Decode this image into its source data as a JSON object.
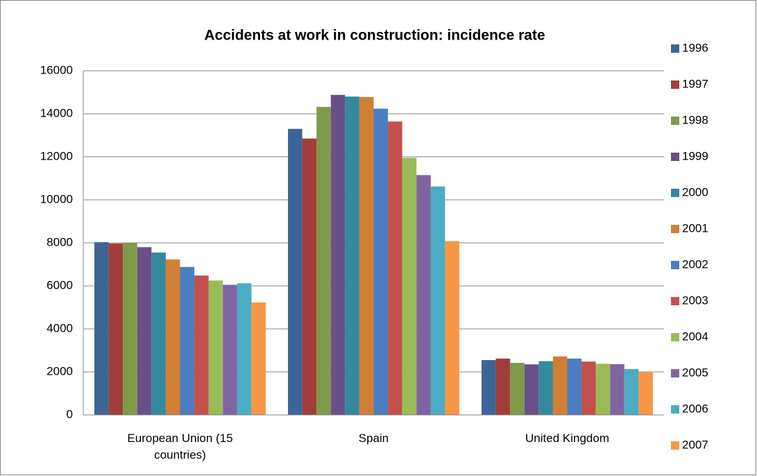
{
  "chart_data": {
    "type": "bar",
    "title": "Accidents at work in construction: incidence rate",
    "categories": [
      "European Union (15 countries)",
      "Spain",
      "United Kingdom"
    ],
    "series": [
      {
        "name": "1996",
        "color": "#3d6497",
        "values": [
          8030,
          13300,
          2550
        ]
      },
      {
        "name": "1997",
        "color": "#a13e3b",
        "values": [
          7970,
          12850,
          2620
        ]
      },
      {
        "name": "1998",
        "color": "#7f9a48",
        "values": [
          8000,
          14320,
          2420
        ]
      },
      {
        "name": "1999",
        "color": "#6a5088",
        "values": [
          7800,
          14880,
          2350
        ]
      },
      {
        "name": "2000",
        "color": "#35899d",
        "values": [
          7550,
          14800,
          2500
        ]
      },
      {
        "name": "2001",
        "color": "#d27f36",
        "values": [
          7230,
          14780,
          2720
        ]
      },
      {
        "name": "2002",
        "color": "#4a7ec1",
        "values": [
          6880,
          14240,
          2620
        ]
      },
      {
        "name": "2003",
        "color": "#c2504d",
        "values": [
          6480,
          13640,
          2480
        ]
      },
      {
        "name": "2004",
        "color": "#9bbb59",
        "values": [
          6250,
          11950,
          2380
        ]
      },
      {
        "name": "2005",
        "color": "#8064a2",
        "values": [
          6050,
          11150,
          2360
        ]
      },
      {
        "name": "2006",
        "color": "#4bacc6",
        "values": [
          6120,
          10620,
          2130
        ]
      },
      {
        "name": "2007",
        "color": "#f79646",
        "values": [
          5230,
          8080,
          2000
        ]
      }
    ],
    "ylim": [
      0,
      16000
    ],
    "yticks": [
      0,
      2000,
      4000,
      6000,
      8000,
      10000,
      12000,
      14000,
      16000
    ],
    "grid": true,
    "legend": "right"
  }
}
